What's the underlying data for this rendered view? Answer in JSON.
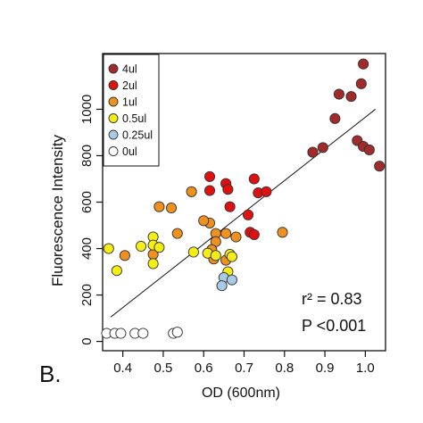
{
  "panel_label": "B.",
  "chart_data": {
    "type": "scatter",
    "title": "",
    "xlabel": "OD (600nm)",
    "ylabel": "Fluorescence Intensity",
    "xlim": [
      0.35,
      1.05
    ],
    "ylim": [
      -40,
      1240
    ],
    "xticks": [
      0.4,
      0.5,
      0.6,
      0.7,
      0.8,
      0.9,
      1.0
    ],
    "xtick_labels": [
      "0.4",
      "0.5",
      "0.6",
      "0.7",
      "0.8",
      "0.9",
      "1.0"
    ],
    "yticks": [
      0,
      200,
      400,
      600,
      800,
      1000
    ],
    "ytick_labels": [
      "0",
      "200",
      "400",
      "600",
      "800",
      "1000"
    ],
    "grid": false,
    "legend_position": "top-left",
    "fit_line": {
      "x": [
        0.37,
        1.025
      ],
      "y": [
        105,
        1000
      ]
    },
    "annotations": [
      "r² = 0.83",
      "P <0.001"
    ],
    "series": [
      {
        "name": "4ul",
        "color": "#a32a2a",
        "points": [
          [
            0.87,
            815
          ],
          [
            0.895,
            835
          ],
          [
            0.925,
            960
          ],
          [
            0.935,
            1065
          ],
          [
            0.965,
            1055
          ],
          [
            0.99,
            1110
          ],
          [
            0.995,
            1195
          ],
          [
            0.98,
            865
          ],
          [
            0.995,
            840
          ],
          [
            1.01,
            825
          ],
          [
            1.035,
            755
          ]
        ]
      },
      {
        "name": "2ul",
        "color": "#e01010",
        "points": [
          [
            0.615,
            710
          ],
          [
            0.615,
            650
          ],
          [
            0.655,
            680
          ],
          [
            0.66,
            655
          ],
          [
            0.665,
            580
          ],
          [
            0.725,
            700
          ],
          [
            0.735,
            640
          ],
          [
            0.755,
            645
          ],
          [
            0.71,
            545
          ],
          [
            0.715,
            470
          ],
          [
            0.725,
            460
          ]
        ]
      },
      {
        "name": "1ul",
        "color": "#f0901e",
        "points": [
          [
            0.57,
            645
          ],
          [
            0.49,
            580
          ],
          [
            0.52,
            575
          ],
          [
            0.405,
            370
          ],
          [
            0.475,
            375
          ],
          [
            0.535,
            465
          ],
          [
            0.615,
            510
          ],
          [
            0.63,
            465
          ],
          [
            0.63,
            430
          ],
          [
            0.62,
            395
          ],
          [
            0.655,
            465
          ],
          [
            0.68,
            450
          ],
          [
            0.625,
            355
          ],
          [
            0.655,
            350
          ],
          [
            0.795,
            470
          ],
          [
            0.6,
            520
          ]
        ]
      },
      {
        "name": "0.5ul",
        "color": "#f5ee14",
        "points": [
          [
            0.365,
            400
          ],
          [
            0.385,
            305
          ],
          [
            0.445,
            410
          ],
          [
            0.475,
            450
          ],
          [
            0.475,
            415
          ],
          [
            0.49,
            405
          ],
          [
            0.475,
            335
          ],
          [
            0.575,
            385
          ],
          [
            0.61,
            380
          ],
          [
            0.63,
            370
          ],
          [
            0.665,
            375
          ],
          [
            0.67,
            365
          ],
          [
            0.66,
            300
          ]
        ]
      },
      {
        "name": "0.25ul",
        "color": "#a9cbe6",
        "points": [
          [
            0.65,
            275
          ],
          [
            0.67,
            265
          ],
          [
            0.645,
            240
          ]
        ]
      },
      {
        "name": "0ul",
        "color": "#ffffff",
        "points": [
          [
            0.36,
            35
          ],
          [
            0.38,
            35
          ],
          [
            0.395,
            35
          ],
          [
            0.43,
            35
          ],
          [
            0.45,
            35
          ],
          [
            0.525,
            35
          ],
          [
            0.535,
            40
          ]
        ]
      }
    ]
  }
}
